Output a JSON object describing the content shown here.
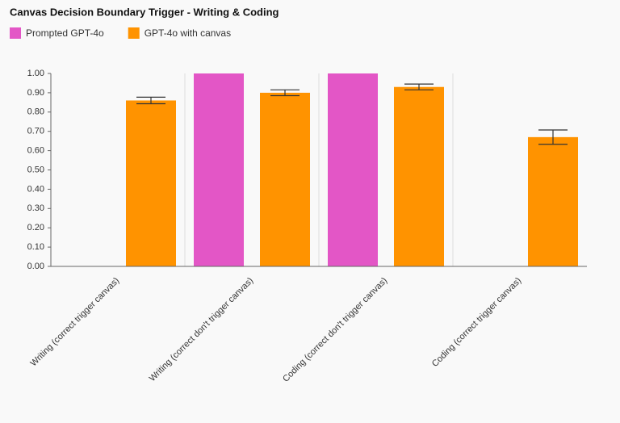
{
  "chart_data": {
    "type": "bar",
    "title": "Canvas Decision Boundary Trigger - Writing & Coding",
    "categories": [
      "Writing (correct trigger canvas)",
      "Writing (correct don't trigger canvas)",
      "Coding (correct don't trigger canvas)",
      "Coding (correct trigger canvas)"
    ],
    "series": [
      {
        "name": "Prompted GPT-4o",
        "color": "#e356c6",
        "values": [
          null,
          1.0,
          1.0,
          null
        ]
      },
      {
        "name": "GPT-4o with canvas",
        "color": "#ff9300",
        "values": [
          0.86,
          0.9,
          0.93,
          0.67
        ],
        "errors": [
          0.017,
          0.015,
          0.015,
          0.037
        ]
      }
    ],
    "ylim": [
      0,
      1
    ],
    "yticks": [
      {
        "value": 0,
        "label": "0.00"
      },
      {
        "value": 0.1,
        "label": "0.10"
      },
      {
        "value": 0.2,
        "label": "0.20"
      },
      {
        "value": 0.3,
        "label": "0.30"
      },
      {
        "value": 0.4,
        "label": "0.40"
      },
      {
        "value": 0.5,
        "label": "0.50"
      },
      {
        "value": 0.6,
        "label": "0.60"
      },
      {
        "value": 0.7,
        "label": "0.70"
      },
      {
        "value": 0.8,
        "label": "0.80"
      },
      {
        "value": 0.9,
        "label": "0.90"
      },
      {
        "value": 1,
        "label": "1.00"
      }
    ],
    "legend": "top-left"
  }
}
